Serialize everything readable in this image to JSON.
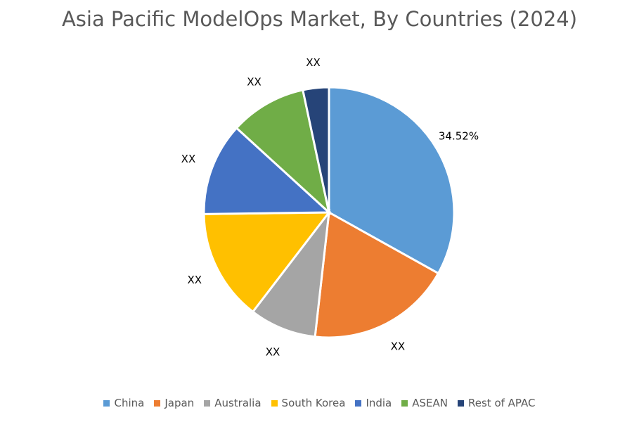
{
  "chart_data": {
    "type": "pie",
    "title": "Asia Pacific ModelOps Market, By Countries (2024)",
    "legend_position": "bottom",
    "slices": [
      {
        "name": "China",
        "value": 34.52,
        "label": "34.52%",
        "color": "#5B9BD5"
      },
      {
        "name": "Japan",
        "value": 19.5,
        "label": "XX",
        "color": "#ED7D31"
      },
      {
        "name": "Australia",
        "value": 9.0,
        "label": "XX",
        "color": "#A5A5A5"
      },
      {
        "name": "South Korea",
        "value": 15.0,
        "label": "XX",
        "color": "#FFC000"
      },
      {
        "name": "India",
        "value": 12.5,
        "label": "XX",
        "color": "#4472C4"
      },
      {
        "name": "ASEAN",
        "value": 10.3,
        "label": "XX",
        "color": "#70AD47"
      },
      {
        "name": "Rest of APAC",
        "value": 3.5,
        "label": "XX",
        "color": "#264478"
      }
    ]
  }
}
